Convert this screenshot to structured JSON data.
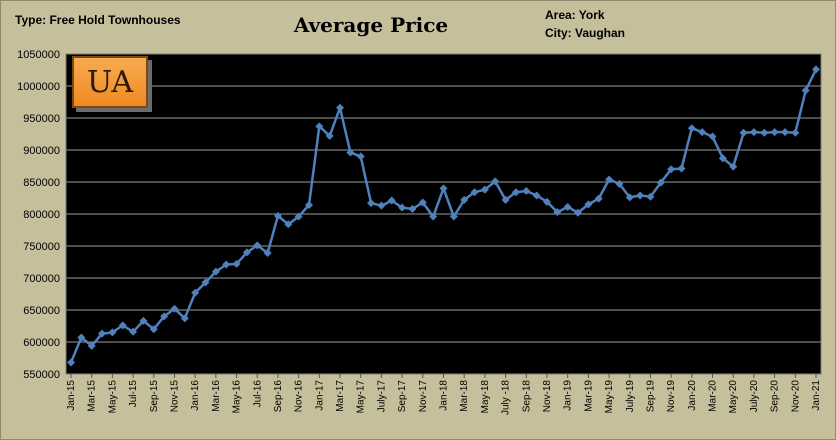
{
  "header": {
    "type_label": "Type: Free Hold Townhouses",
    "area_label": "Area: York",
    "city_label": "City: Vaughan"
  },
  "badge": {
    "text": "UA"
  },
  "chart_data": {
    "type": "line",
    "title": "Average Price",
    "xlabel": "",
    "ylabel": "",
    "ylim": [
      550000,
      1050000
    ],
    "ytick_step": 50000,
    "grid": true,
    "series_color": "#4f81bd",
    "plot_background": "#000000",
    "x": [
      "Jan-15",
      "Feb-15",
      "Mar-15",
      "Apr-15",
      "May-15",
      "Jun-15",
      "Jul-15",
      "Aug-15",
      "Sep-15",
      "Oct-15",
      "Nov-15",
      "Dec-15",
      "Jan-16",
      "Feb-16",
      "Mar-16",
      "Apr-16",
      "May-16",
      "Jun-16",
      "Jul-16",
      "Aug-16",
      "Sep-16",
      "Oct-16",
      "Nov-16",
      "Dec-16",
      "Jan-17",
      "Feb-17",
      "Mar-17",
      "Apr-17",
      "May-17",
      "Jun-17",
      "July-17",
      "Aug-17",
      "Sep-17",
      "Oct-17",
      "Nov-17",
      "Dec-17",
      "Jan-18",
      "Feb-18",
      "Mar-18",
      "Apr-18",
      "May-18",
      "Jun-18",
      "July -18",
      "Aug-18",
      "Sep-18",
      "Oct-18",
      "Nov-18",
      "Dec-18",
      "Jan-19",
      "Feb-19",
      "Mar-19",
      "Apr-19",
      "May-19",
      "Jun-19",
      "July-19",
      "Aug-19",
      "Sep-19",
      "Oct-19",
      "Nov-19",
      "Dec-19",
      "Jan-20",
      "Feb-20",
      "Mar-20",
      "Apr-20",
      "May-20",
      "Jun-20",
      "July-20",
      "Aug-20",
      "Sep-20",
      "Oct-20",
      "Nov-20",
      "Dec-20",
      "Jan-21"
    ],
    "xtick_labels": [
      "Jan-15",
      "Mar-15",
      "May-15",
      "Jul-15",
      "Sep-15",
      "Nov-15",
      "Jan-16",
      "Mar-16",
      "May-16",
      "Jul-16",
      "Sep-16",
      "Nov-16",
      "Jan-17",
      "Mar-17",
      "May-17",
      "July-17",
      "Sep-17",
      "Nov-17",
      "Jan-18",
      "Mar-18",
      "May-18",
      "July -18",
      "Sep-18",
      "Nov-18",
      "Jan-19",
      "Mar-19",
      "May-19",
      "July-19",
      "Sep-19",
      "Nov-19",
      "Jan-20",
      "Mar-20",
      "May-20",
      "July-20",
      "Sep-20",
      "Nov-20",
      "Jan-21"
    ],
    "values": [
      568000,
      607000,
      594000,
      613000,
      615000,
      626000,
      616000,
      633000,
      620000,
      640000,
      652000,
      637000,
      677000,
      693000,
      710000,
      721000,
      722000,
      740000,
      751000,
      739000,
      797000,
      784000,
      796000,
      814000,
      937000,
      922000,
      966000,
      896000,
      890000,
      817000,
      813000,
      821000,
      810000,
      808000,
      818000,
      796000,
      840000,
      796000,
      822000,
      834000,
      838000,
      851000,
      822000,
      834000,
      836000,
      829000,
      819000,
      803000,
      811000,
      802000,
      815000,
      824000,
      854000,
      847000,
      826000,
      829000,
      827000,
      849000,
      870000,
      871000,
      934000,
      928000,
      921000,
      887000,
      874000,
      927000,
      928000,
      927000,
      928000,
      928000,
      927000,
      993000,
      1026000
    ]
  }
}
